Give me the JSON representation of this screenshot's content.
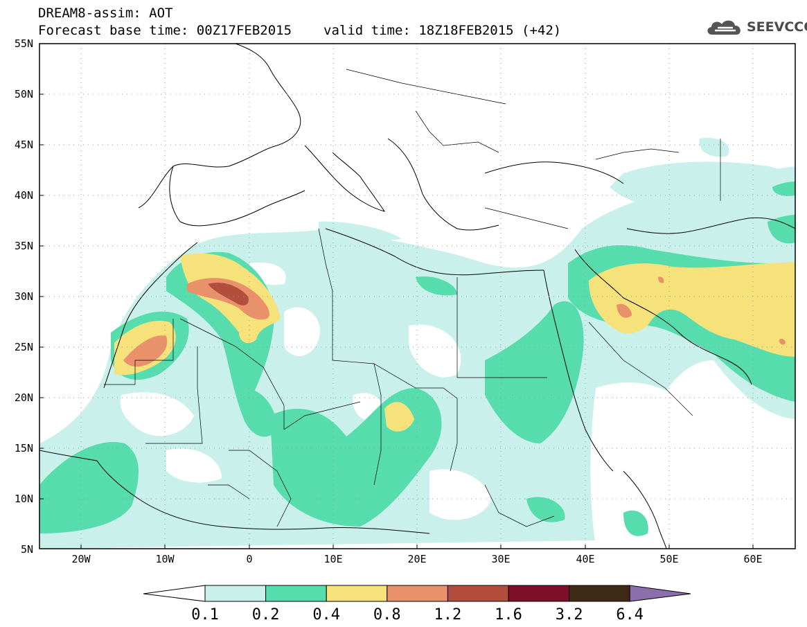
{
  "header": {
    "line1": "DREAM8-assim: AOT",
    "base_time": "Forecast base time: 00Z17FEB2015",
    "valid_time": "valid time: 18Z18FEB2015 (+42)"
  },
  "logo": {
    "text": "SEEVCCC",
    "icon": "cloud-icon"
  },
  "map": {
    "projection": "lat-lon",
    "lon_range": [
      -25,
      65
    ],
    "lat_range": [
      5,
      55
    ],
    "grid": true,
    "lat_labels": [
      "5N",
      "10N",
      "15N",
      "20N",
      "25N",
      "30N",
      "35N",
      "40N",
      "45N",
      "50N",
      "55N"
    ],
    "lon_labels": [
      "20W",
      "10W",
      "0",
      "10E",
      "20E",
      "30E",
      "40E",
      "50E",
      "60E"
    ],
    "field": "Aerosol optical thickness"
  },
  "colorbar": {
    "labels": [
      "0.1",
      "0.2",
      "0.4",
      "0.8",
      "1.2",
      "1.6",
      "3.2",
      "6.4"
    ],
    "colors": [
      "#ffffff",
      "#c9f0ea",
      "#57dcae",
      "#f6e27a",
      "#e8916a",
      "#b34e3c",
      "#7d0f2a",
      "#3e2a14",
      "#8d6fae"
    ]
  }
}
